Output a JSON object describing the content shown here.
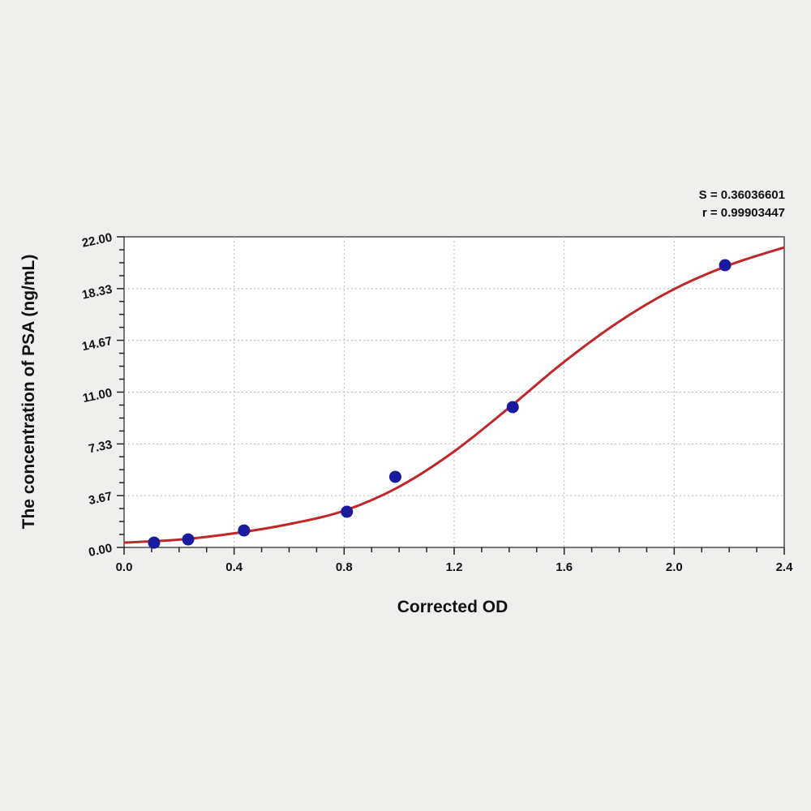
{
  "chart_data": {
    "type": "scatter",
    "xlabel": "Corrected OD",
    "ylabel": "The concentration of PSA (ng/mL)",
    "xlim": [
      0,
      2.4
    ],
    "ylim": [
      0,
      22
    ],
    "xticks": [
      "0.0",
      "0.4",
      "0.8",
      "1.2",
      "1.6",
      "2.0",
      "2.4"
    ],
    "yticks": [
      "0.00",
      "3.67",
      "7.33",
      "11.00",
      "14.67",
      "18.33",
      "22.00"
    ],
    "grid": true,
    "annotations": [
      "S = 0.36036601",
      "r = 0.99903447"
    ],
    "points": {
      "color": "#1a1a9c",
      "x": [
        0.109,
        0.233,
        0.436,
        0.81,
        0.986,
        1.413,
        2.185
      ],
      "y": [
        0.34,
        0.57,
        1.2,
        2.53,
        5.0,
        9.94,
        19.99
      ]
    },
    "fit_curve": {
      "color": "#c0262a",
      "x": [
        0,
        0.2,
        0.4,
        0.6,
        0.8,
        1.0,
        1.2,
        1.4,
        1.6,
        1.8,
        2.0,
        2.2,
        2.4
      ],
      "y": [
        0.34,
        0.55,
        1.0,
        1.65,
        2.6,
        4.3,
        6.8,
        9.9,
        13.15,
        16.0,
        18.3,
        20.0,
        21.25
      ]
    }
  }
}
